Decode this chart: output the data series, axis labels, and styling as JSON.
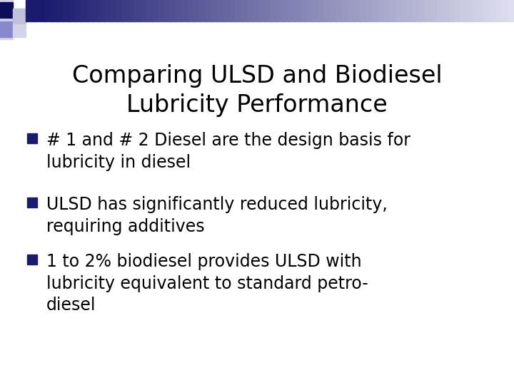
{
  "title_line1": "Comparing ULSD and Biodiesel",
  "title_line2": "Lubricity Performance",
  "bullet1_line1": "# 1 and # 2 Diesel are the design basis for",
  "bullet1_line2": "lubricity in diesel",
  "bullet2_line1": "ULSD has significantly reduced lubricity,",
  "bullet2_line2": "requiring additives",
  "bullet3_line1": "1 to 2% biodiesel provides ULSD with",
  "bullet3_line2": "lubricity equivalent to standard petro-",
  "bullet3_line3": "diesel",
  "bg_color": "#ffffff",
  "title_color": "#000000",
  "bullet_color": "#000000",
  "bullet_square_color": "#1a1a6e",
  "title_fontsize": 24,
  "bullet_fontsize": 17,
  "deco_dark1": "#0d0d5c",
  "deco_mid": "#8888cc",
  "deco_light": "#c0c0dd",
  "deco_lighter": "#d4d4e8",
  "deco_navy": "#1a1a6e",
  "deco_bar_end": "#e0e0f0"
}
